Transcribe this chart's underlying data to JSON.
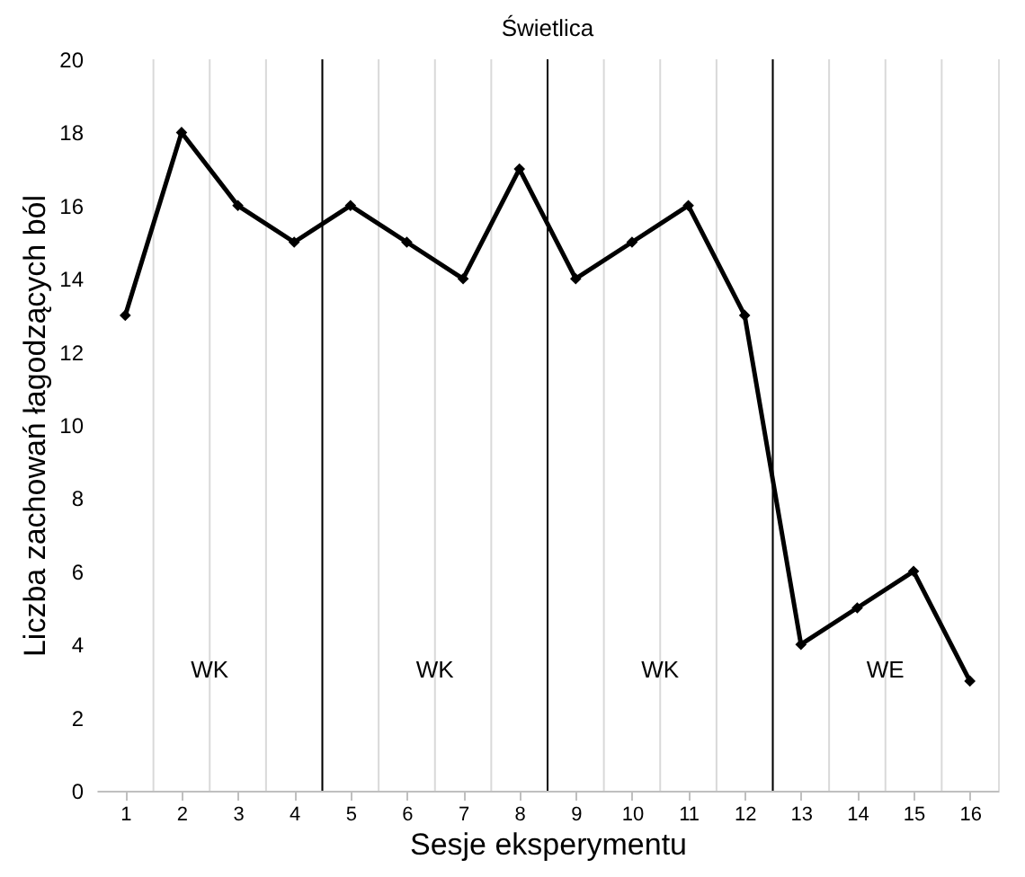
{
  "chart_data": {
    "type": "line",
    "title": "Świetlica",
    "xlabel": "Sesje eksperymentu",
    "ylabel": "Liczba zachowań łagodzących ból",
    "x": [
      1,
      2,
      3,
      4,
      5,
      6,
      7,
      8,
      9,
      10,
      11,
      12,
      13,
      14,
      15,
      16
    ],
    "series": [
      {
        "color": "#000000",
        "values": [
          13,
          18,
          16,
          15,
          16,
          15,
          14,
          17,
          14,
          15,
          16,
          13,
          4,
          5,
          6,
          3
        ]
      }
    ],
    "xlim": [
      0.5,
      16.5
    ],
    "xticks": [
      1,
      2,
      3,
      4,
      5,
      6,
      7,
      8,
      9,
      10,
      11,
      12,
      13,
      14,
      15,
      16
    ],
    "ylim": [
      0,
      20
    ],
    "yticks": [
      0,
      2,
      4,
      6,
      8,
      10,
      12,
      14,
      16,
      18,
      20
    ],
    "ref_lines": [
      {
        "axis": "x",
        "value": 4.5,
        "color": "#000000"
      },
      {
        "axis": "x",
        "value": 8.5,
        "color": "#000000"
      },
      {
        "axis": "x",
        "value": 12.5,
        "color": "#000000"
      }
    ],
    "bands": [
      {
        "axis": "x",
        "from": 0.5,
        "to": 4.5,
        "label": "WK",
        "color": "#ffffff"
      },
      {
        "axis": "x",
        "from": 4.5,
        "to": 8.5,
        "label": "WK",
        "color": "#ffffff"
      },
      {
        "axis": "x",
        "from": 8.5,
        "to": 12.5,
        "label": "WK",
        "color": "#ffffff"
      },
      {
        "axis": "x",
        "from": 12.5,
        "to": 16.5,
        "label": "WE",
        "color": "#ffffff"
      }
    ],
    "grid": "x",
    "marker": "diamond",
    "line_style": "solid",
    "legend": false
  }
}
